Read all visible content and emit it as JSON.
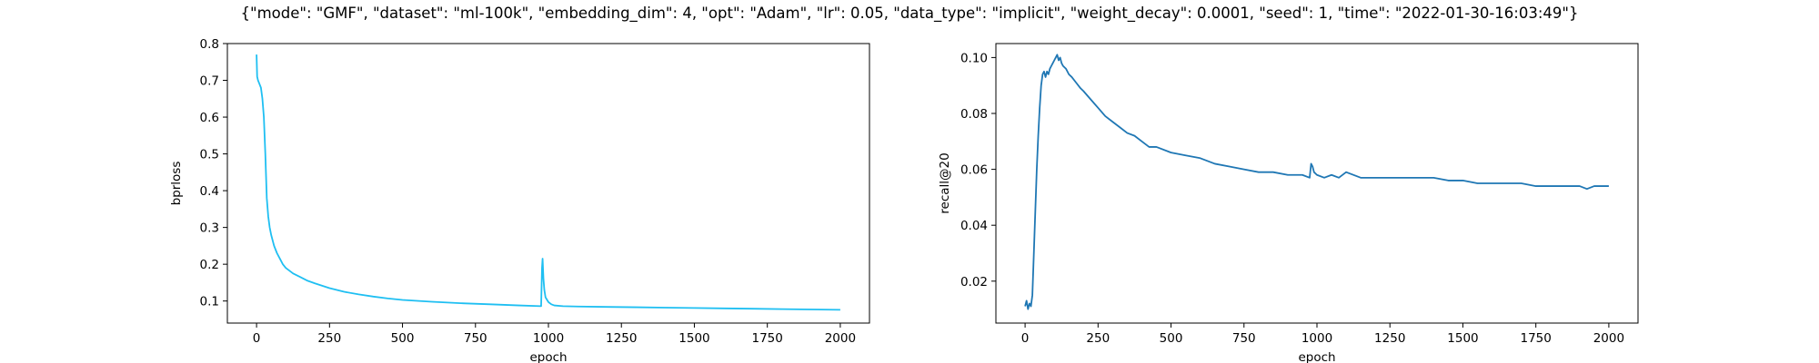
{
  "figure": {
    "suptitle": "{\"mode\": \"GMF\", \"dataset\": \"ml-100k\", \"embedding_dim\": 4, \"opt\": \"Adam\", \"lr\": 0.05, \"data_type\": \"implicit\", \"weight_decay\": 0.0001, \"seed\": 1, \"time\": \"2022-01-30-16:03:49\"}"
  },
  "chart_data": [
    {
      "type": "line",
      "xlabel": "epoch",
      "ylabel": "bprloss",
      "xlim": [
        -100,
        2100
      ],
      "ylim": [
        0.04,
        0.8
      ],
      "xticks": [
        0,
        250,
        500,
        750,
        1000,
        1250,
        1500,
        1750,
        2000
      ],
      "yticks": [
        0.1,
        0.2,
        0.3,
        0.4,
        0.5,
        0.6,
        0.7,
        0.8
      ],
      "ytick_labels": [
        "0.1",
        "0.2",
        "0.3",
        "0.4",
        "0.5",
        "0.6",
        "0.7",
        "0.8"
      ],
      "color": "#1fbff2",
      "grid": false,
      "series": [
        {
          "x": [
            0,
            2,
            5,
            10,
            15,
            20,
            25,
            30,
            35,
            40,
            45,
            50,
            60,
            70,
            80,
            90,
            100,
            125,
            150,
            175,
            200,
            250,
            300,
            350,
            400,
            450,
            500,
            600,
            700,
            800,
            900,
            975,
            978,
            980,
            983,
            986,
            990,
            1000,
            1010,
            1020,
            1050,
            1100,
            1200,
            1300,
            1400,
            1500,
            1600,
            1700,
            1800,
            1900,
            2000
          ],
          "y": [
            0.77,
            0.71,
            0.7,
            0.69,
            0.68,
            0.65,
            0.6,
            0.5,
            0.38,
            0.33,
            0.3,
            0.28,
            0.25,
            0.23,
            0.215,
            0.2,
            0.19,
            0.175,
            0.165,
            0.155,
            0.148,
            0.135,
            0.125,
            0.118,
            0.112,
            0.107,
            0.103,
            0.098,
            0.094,
            0.091,
            0.088,
            0.086,
            0.19,
            0.215,
            0.16,
            0.13,
            0.11,
            0.097,
            0.091,
            0.088,
            0.086,
            0.085,
            0.084,
            0.083,
            0.082,
            0.081,
            0.08,
            0.079,
            0.078,
            0.077,
            0.076
          ]
        }
      ]
    },
    {
      "type": "line",
      "xlabel": "epoch",
      "ylabel": "recall@20",
      "xlim": [
        -100,
        2100
      ],
      "ylim": [
        0.005,
        0.105
      ],
      "xticks": [
        0,
        250,
        500,
        750,
        1000,
        1250,
        1500,
        1750,
        2000
      ],
      "yticks": [
        0.02,
        0.04,
        0.06,
        0.08,
        0.1
      ],
      "ytick_labels": [
        "0.02",
        "0.04",
        "0.06",
        "0.08",
        "0.10"
      ],
      "color": "#1f77b4",
      "grid": false,
      "series": [
        {
          "x": [
            0,
            5,
            10,
            15,
            20,
            25,
            30,
            35,
            40,
            45,
            50,
            55,
            60,
            65,
            70,
            75,
            80,
            85,
            90,
            95,
            100,
            105,
            110,
            115,
            120,
            125,
            130,
            140,
            150,
            160,
            175,
            190,
            200,
            225,
            250,
            275,
            300,
            325,
            350,
            375,
            400,
            425,
            450,
            500,
            550,
            600,
            650,
            700,
            750,
            800,
            850,
            900,
            950,
            975,
            980,
            985,
            990,
            1000,
            1025,
            1050,
            1075,
            1100,
            1150,
            1200,
            1250,
            1300,
            1350,
            1400,
            1450,
            1500,
            1550,
            1600,
            1650,
            1700,
            1750,
            1800,
            1850,
            1900,
            1925,
            1950,
            2000
          ],
          "y": [
            0.011,
            0.013,
            0.01,
            0.012,
            0.011,
            0.015,
            0.03,
            0.045,
            0.06,
            0.072,
            0.082,
            0.09,
            0.094,
            0.095,
            0.093,
            0.095,
            0.094,
            0.096,
            0.097,
            0.098,
            0.099,
            0.1,
            0.101,
            0.099,
            0.1,
            0.098,
            0.097,
            0.096,
            0.094,
            0.093,
            0.091,
            0.089,
            0.088,
            0.085,
            0.082,
            0.079,
            0.077,
            0.075,
            0.073,
            0.072,
            0.07,
            0.068,
            0.068,
            0.066,
            0.065,
            0.064,
            0.062,
            0.061,
            0.06,
            0.059,
            0.059,
            0.058,
            0.058,
            0.057,
            0.062,
            0.061,
            0.059,
            0.058,
            0.057,
            0.058,
            0.057,
            0.059,
            0.057,
            0.057,
            0.057,
            0.057,
            0.057,
            0.057,
            0.056,
            0.056,
            0.055,
            0.055,
            0.055,
            0.055,
            0.054,
            0.054,
            0.054,
            0.054,
            0.053,
            0.054,
            0.054
          ]
        }
      ]
    }
  ]
}
